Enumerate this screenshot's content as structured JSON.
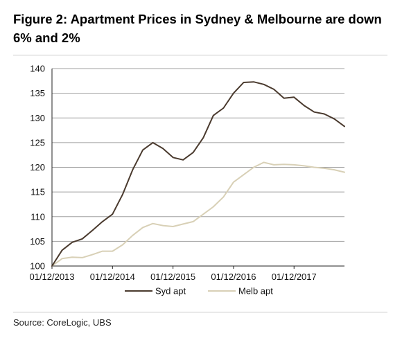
{
  "title": "Figure 2: Apartment Prices in Sydney & Melbourne are down 6% and 2%",
  "source": "Source:  CoreLogic, UBS",
  "colors": {
    "syd": "#4a3a2e",
    "melb": "#d8d0b6",
    "grid": "#a0a0a0",
    "axis": "#222222"
  },
  "chart_data": {
    "type": "line",
    "title": "Figure 2: Apartment Prices in Sydney & Melbourne are down 6% and 2%",
    "xlabel": "",
    "ylabel": "",
    "ylim": [
      100,
      140
    ],
    "yticks": [
      100,
      105,
      110,
      115,
      120,
      125,
      130,
      135,
      140
    ],
    "xtick_labels": [
      "01/12/2013",
      "01/12/2014",
      "01/12/2015",
      "01/12/2016",
      "01/12/2017"
    ],
    "grid": "horizontal",
    "legend": "bottom",
    "x": [
      "2013-12",
      "2014-02",
      "2014-04",
      "2014-06",
      "2014-08",
      "2014-10",
      "2014-12",
      "2015-02",
      "2015-04",
      "2015-06",
      "2015-08",
      "2015-10",
      "2015-12",
      "2016-02",
      "2016-04",
      "2016-06",
      "2016-08",
      "2016-10",
      "2016-12",
      "2017-02",
      "2017-04",
      "2017-06",
      "2017-08",
      "2017-10",
      "2017-12",
      "2018-02",
      "2018-04",
      "2018-06",
      "2018-08",
      "2018-10"
    ],
    "series": [
      {
        "name": "Syd apt",
        "values": [
          100.0,
          103.2,
          104.8,
          105.5,
          107.2,
          109.0,
          110.5,
          114.5,
          119.5,
          123.5,
          125.0,
          123.8,
          122.0,
          121.5,
          123.0,
          126.0,
          130.5,
          132.0,
          135.0,
          137.2,
          137.3,
          136.8,
          135.8,
          134.0,
          134.2,
          132.5,
          131.2,
          130.8,
          129.8,
          128.3
        ]
      },
      {
        "name": "Melb apt",
        "values": [
          100.0,
          101.5,
          101.8,
          101.7,
          102.3,
          103.0,
          103.0,
          104.3,
          106.2,
          107.8,
          108.6,
          108.2,
          108.0,
          108.5,
          109.0,
          110.5,
          112.0,
          114.0,
          117.0,
          118.5,
          120.0,
          121.0,
          120.5,
          120.6,
          120.5,
          120.3,
          120.0,
          119.8,
          119.5,
          119.0
        ]
      }
    ]
  }
}
